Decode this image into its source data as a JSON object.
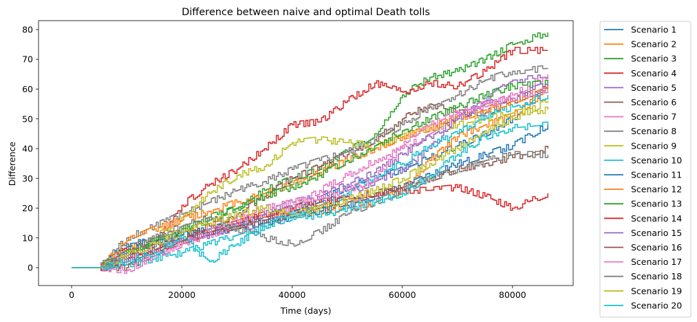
{
  "chart_data": {
    "type": "line",
    "title": "Difference between naive and optimal Death tolls",
    "xlabel": "Time (days)",
    "ylabel": "Difference",
    "xlim": [
      -6000,
      91000
    ],
    "ylim": [
      -6,
      83
    ],
    "xticks": [
      0,
      20000,
      40000,
      60000,
      80000
    ],
    "yticks": [
      0,
      10,
      20,
      30,
      40,
      50,
      60,
      70,
      80
    ],
    "grid": false,
    "legend_position": "outside-right",
    "series": [
      {
        "name": "Scenario 1",
        "color": "#1f77b4",
        "x": [
          0,
          5000,
          10000,
          15000,
          20000,
          25000,
          30000,
          35000,
          40000,
          45000,
          50000,
          55000,
          60000,
          65000,
          70000,
          75000,
          80000,
          86400
        ],
        "y": [
          0,
          0,
          7,
          9,
          11,
          13,
          15,
          17,
          20,
          23,
          27,
          30,
          33,
          37,
          41,
          45,
          50,
          61
        ]
      },
      {
        "name": "Scenario 2",
        "color": "#ff7f0e",
        "x": [
          0,
          5000,
          10000,
          15000,
          20000,
          25000,
          30000,
          35000,
          40000,
          45000,
          50000,
          55000,
          60000,
          65000,
          70000,
          75000,
          80000,
          86400
        ],
        "y": [
          0,
          0,
          6,
          10,
          12,
          14,
          16,
          18,
          18,
          19,
          20,
          22,
          26,
          36,
          44,
          48,
          51,
          60
        ]
      },
      {
        "name": "Scenario 3",
        "color": "#2ca02c",
        "x": [
          0,
          5000,
          10000,
          15000,
          20000,
          25000,
          30000,
          35000,
          40000,
          45000,
          50000,
          55000,
          60000,
          65000,
          70000,
          75000,
          80000,
          86400
        ],
        "y": [
          0,
          0,
          4,
          8,
          13,
          17,
          20,
          26,
          30,
          33,
          39,
          45,
          58,
          64,
          66,
          70,
          75,
          79
        ]
      },
      {
        "name": "Scenario 4",
        "color": "#d62728",
        "x": [
          0,
          5000,
          10000,
          15000,
          20000,
          25000,
          30000,
          35000,
          40000,
          45000,
          50000,
          55000,
          60000,
          65000,
          70000,
          75000,
          80000,
          86400
        ],
        "y": [
          0,
          0,
          6,
          8,
          21,
          28,
          33,
          40,
          48,
          49,
          56,
          62,
          59,
          62,
          61,
          66,
          73,
          73
        ]
      },
      {
        "name": "Scenario 5",
        "color": "#9467bd",
        "x": [
          0,
          5000,
          10000,
          15000,
          20000,
          25000,
          30000,
          35000,
          40000,
          45000,
          50000,
          55000,
          60000,
          65000,
          70000,
          75000,
          80000,
          86400
        ],
        "y": [
          0,
          0,
          4,
          7,
          10,
          12,
          13,
          15,
          18,
          21,
          25,
          29,
          33,
          40,
          50,
          56,
          63,
          64
        ]
      },
      {
        "name": "Scenario 6",
        "color": "#8c564b",
        "x": [
          0,
          5000,
          10000,
          15000,
          20000,
          25000,
          30000,
          35000,
          40000,
          45000,
          50000,
          55000,
          60000,
          65000,
          70000,
          75000,
          80000,
          86400
        ],
        "y": [
          0,
          0,
          2,
          6,
          10,
          14,
          18,
          24,
          30,
          34,
          38,
          43,
          50,
          55,
          52,
          52,
          56,
          61
        ]
      },
      {
        "name": "Scenario 7",
        "color": "#e377c2",
        "x": [
          0,
          5000,
          10000,
          15000,
          20000,
          25000,
          30000,
          35000,
          40000,
          45000,
          50000,
          55000,
          60000,
          65000,
          70000,
          75000,
          80000,
          86400
        ],
        "y": [
          0,
          0,
          2,
          4,
          8,
          11,
          14,
          17,
          20,
          26,
          31,
          36,
          40,
          45,
          51,
          54,
          58,
          65
        ]
      },
      {
        "name": "Scenario 8",
        "color": "#7f7f7f",
        "x": [
          0,
          5000,
          10000,
          15000,
          20000,
          25000,
          30000,
          35000,
          40000,
          45000,
          50000,
          55000,
          60000,
          65000,
          70000,
          75000,
          80000,
          86400
        ],
        "y": [
          0,
          0,
          10,
          14,
          18,
          22,
          26,
          29,
          33,
          36,
          39,
          43,
          48,
          54,
          58,
          63,
          66,
          67
        ]
      },
      {
        "name": "Scenario 9",
        "color": "#bcbd22",
        "x": [
          0,
          5000,
          10000,
          15000,
          20000,
          25000,
          30000,
          35000,
          40000,
          45000,
          50000,
          55000,
          60000,
          65000,
          70000,
          75000,
          80000,
          86400
        ],
        "y": [
          0,
          0,
          4,
          10,
          17,
          25,
          31,
          34,
          42,
          43,
          42,
          41,
          44,
          47,
          48,
          50,
          52,
          53
        ]
      },
      {
        "name": "Scenario 10",
        "color": "#17becf",
        "x": [
          0,
          5000,
          10000,
          15000,
          20000,
          25000,
          30000,
          35000,
          40000,
          45000,
          50000,
          55000,
          60000,
          65000,
          70000,
          75000,
          80000,
          86400
        ],
        "y": [
          0,
          0,
          1,
          3,
          5,
          8,
          11,
          14,
          17,
          20,
          25,
          31,
          35,
          41,
          45,
          51,
          54,
          58
        ]
      },
      {
        "name": "Scenario 11",
        "color": "#1f77b4",
        "x": [
          0,
          5000,
          10000,
          15000,
          20000,
          25000,
          30000,
          35000,
          40000,
          45000,
          50000,
          55000,
          60000,
          65000,
          70000,
          75000,
          80000,
          86400
        ],
        "y": [
          0,
          0,
          8,
          9,
          11,
          12,
          14,
          15,
          17,
          19,
          21,
          24,
          27,
          31,
          35,
          38,
          41,
          48
        ]
      },
      {
        "name": "Scenario 12",
        "color": "#ff7f0e",
        "x": [
          0,
          5000,
          10000,
          15000,
          20000,
          25000,
          30000,
          35000,
          40000,
          45000,
          50000,
          55000,
          60000,
          65000,
          70000,
          75000,
          80000,
          86400
        ],
        "y": [
          0,
          0,
          9,
          13,
          16,
          19,
          22,
          25,
          28,
          32,
          36,
          40,
          44,
          47,
          50,
          53,
          56,
          61
        ]
      },
      {
        "name": "Scenario 13",
        "color": "#2ca02c",
        "x": [
          0,
          5000,
          10000,
          15000,
          20000,
          25000,
          30000,
          35000,
          40000,
          45000,
          50000,
          55000,
          60000,
          65000,
          70000,
          75000,
          80000,
          86400
        ],
        "y": [
          0,
          0,
          5,
          9,
          13,
          16,
          20,
          24,
          27,
          31,
          36,
          41,
          46,
          50,
          54,
          58,
          61,
          62
        ]
      },
      {
        "name": "Scenario 14",
        "color": "#d62728",
        "x": [
          0,
          5000,
          10000,
          15000,
          20000,
          25000,
          30000,
          35000,
          40000,
          45000,
          50000,
          55000,
          60000,
          65000,
          70000,
          75000,
          80000,
          86400
        ],
        "y": [
          0,
          0,
          3,
          6,
          9,
          12,
          15,
          18,
          20,
          22,
          24,
          25,
          26,
          26,
          27,
          24,
          20,
          25
        ]
      },
      {
        "name": "Scenario 15",
        "color": "#9467bd",
        "x": [
          0,
          5000,
          10000,
          15000,
          20000,
          25000,
          30000,
          35000,
          40000,
          45000,
          50000,
          55000,
          60000,
          65000,
          70000,
          75000,
          80000,
          86400
        ],
        "y": [
          0,
          0,
          3,
          6,
          9,
          11,
          14,
          18,
          22,
          24,
          28,
          32,
          38,
          44,
          50,
          55,
          57,
          62
        ]
      },
      {
        "name": "Scenario 16",
        "color": "#8c564b",
        "x": [
          0,
          5000,
          10000,
          15000,
          20000,
          25000,
          30000,
          35000,
          40000,
          45000,
          50000,
          55000,
          60000,
          65000,
          70000,
          75000,
          80000,
          86400
        ],
        "y": [
          0,
          0,
          0,
          5,
          9,
          12,
          14,
          16,
          18,
          20,
          22,
          25,
          27,
          30,
          33,
          35,
          37,
          40
        ]
      },
      {
        "name": "Scenario 17",
        "color": "#e377c2",
        "x": [
          0,
          5000,
          10000,
          15000,
          20000,
          25000,
          30000,
          35000,
          40000,
          45000,
          50000,
          55000,
          60000,
          65000,
          70000,
          75000,
          80000,
          86400
        ],
        "y": [
          0,
          0,
          -1,
          4,
          8,
          12,
          16,
          20,
          22,
          24,
          26,
          30,
          41,
          48,
          52,
          55,
          57,
          60
        ]
      },
      {
        "name": "Scenario 18",
        "color": "#7f7f7f",
        "x": [
          0,
          5000,
          10000,
          15000,
          20000,
          25000,
          30000,
          35000,
          40000,
          45000,
          50000,
          55000,
          60000,
          65000,
          70000,
          75000,
          80000,
          86400
        ],
        "y": [
          0,
          0,
          5,
          10,
          14,
          17,
          13,
          10,
          8,
          12,
          18,
          22,
          26,
          30,
          33,
          36,
          38,
          38
        ]
      },
      {
        "name": "Scenario 19",
        "color": "#bcbd22",
        "x": [
          0,
          5000,
          10000,
          15000,
          20000,
          25000,
          30000,
          35000,
          40000,
          45000,
          50000,
          55000,
          60000,
          65000,
          70000,
          75000,
          80000,
          86400
        ],
        "y": [
          0,
          0,
          4,
          8,
          12,
          15,
          18,
          20,
          18,
          20,
          23,
          26,
          30,
          35,
          40,
          46,
          50,
          56
        ]
      },
      {
        "name": "Scenario 20",
        "color": "#17becf",
        "x": [
          0,
          5000,
          10000,
          15000,
          20000,
          25000,
          30000,
          35000,
          40000,
          45000,
          50000,
          55000,
          60000,
          65000,
          70000,
          75000,
          80000,
          86400
        ],
        "y": [
          0,
          0,
          2,
          5,
          10,
          2,
          8,
          14,
          18,
          17,
          20,
          22,
          25,
          31,
          38,
          44,
          47,
          48
        ]
      }
    ]
  }
}
